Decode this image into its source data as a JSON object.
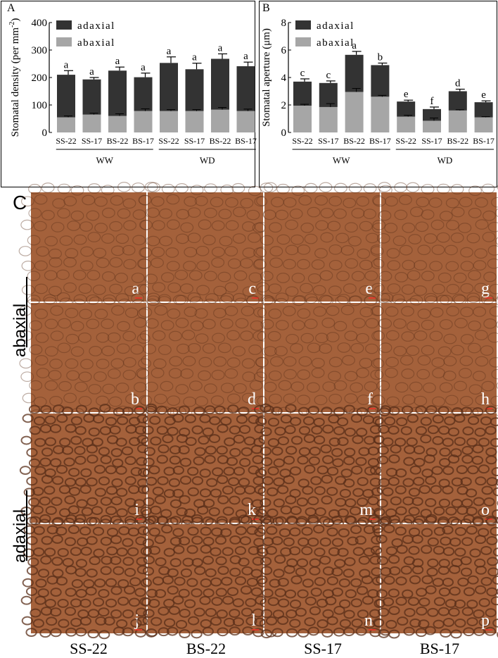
{
  "chart_data": [
    {
      "panel": "A",
      "type": "bar",
      "stacked": true,
      "ylabel": "Stomatal density (per mm-2)",
      "ylim": [
        0,
        400
      ],
      "yticks": [
        0,
        100,
        200,
        300,
        400
      ],
      "categories": [
        "SS-22",
        "SS-17",
        "BS-22",
        "BS-17",
        "SS-22",
        "SS-17",
        "BS-22",
        "BS-17"
      ],
      "groups": [
        {
          "label": "WW",
          "from": 0,
          "to": 3
        },
        {
          "label": "WD",
          "from": 4,
          "to": 7
        }
      ],
      "series": [
        {
          "name": "abaxial",
          "color": "#a6a6a6",
          "values": [
            55,
            65,
            60,
            78,
            78,
            78,
            83,
            78
          ],
          "errors": [
            5,
            5,
            8,
            8,
            5,
            5,
            8,
            7
          ]
        },
        {
          "name": "adaxial",
          "color": "#333333",
          "values": [
            155,
            128,
            165,
            123,
            175,
            152,
            185,
            163
          ],
          "errors": [
            15,
            7,
            13,
            15,
            22,
            22,
            18,
            15
          ]
        }
      ],
      "letters": [
        "a",
        "a",
        "a",
        "a",
        "a",
        "a",
        "a",
        "a"
      ],
      "legend": "top-left"
    },
    {
      "panel": "B",
      "type": "bar",
      "stacked": true,
      "ylabel": "Stomatal aperture (μm)",
      "ylim": [
        0,
        8
      ],
      "yticks": [
        0,
        2,
        4,
        6,
        8
      ],
      "categories": [
        "SS-22",
        "SS-17",
        "BS-22",
        "BS-17",
        "SS-22",
        "SS-17",
        "BS-22",
        "BS-17"
      ],
      "groups": [
        {
          "label": "WW",
          "from": 0,
          "to": 3
        },
        {
          "label": "WD",
          "from": 4,
          "to": 7
        }
      ],
      "series": [
        {
          "name": "abaxial",
          "color": "#a6a6a6",
          "values": [
            1.95,
            1.85,
            2.95,
            2.6,
            1.15,
            0.85,
            1.6,
            1.1
          ],
          "errors": [
            0.1,
            0.25,
            0.25,
            0.1,
            0.1,
            0.2,
            0.05,
            0.05
          ]
        },
        {
          "name": "adaxial",
          "color": "#333333",
          "values": [
            1.75,
            1.75,
            2.7,
            2.3,
            1.1,
            0.85,
            1.4,
            1.1
          ],
          "errors": [
            0.2,
            0.15,
            0.25,
            0.15,
            0.1,
            0.15,
            0.15,
            0.1
          ]
        }
      ],
      "letters": [
        "c",
        "c",
        "a",
        "b",
        "e",
        "f",
        "d",
        "e"
      ],
      "legend": "top-left"
    }
  ],
  "panel_labels": {
    "a": "A",
    "b": "B",
    "c": "C"
  },
  "micrographs": {
    "row_labels": [
      {
        "text": "abaxial"
      },
      {
        "text": "adaxial"
      }
    ],
    "column_labels": [
      "SS-22",
      "BS-22",
      "SS-17",
      "BS-17"
    ],
    "tile_letters": [
      [
        "a",
        "c",
        "e",
        "g"
      ],
      [
        "b",
        "d",
        "f",
        "h"
      ],
      [
        "i",
        "k",
        "m",
        "o"
      ],
      [
        "j",
        "l",
        "n",
        "p"
      ]
    ],
    "tile_color": "#a4613b",
    "cell_color": "#5a2f1a"
  }
}
